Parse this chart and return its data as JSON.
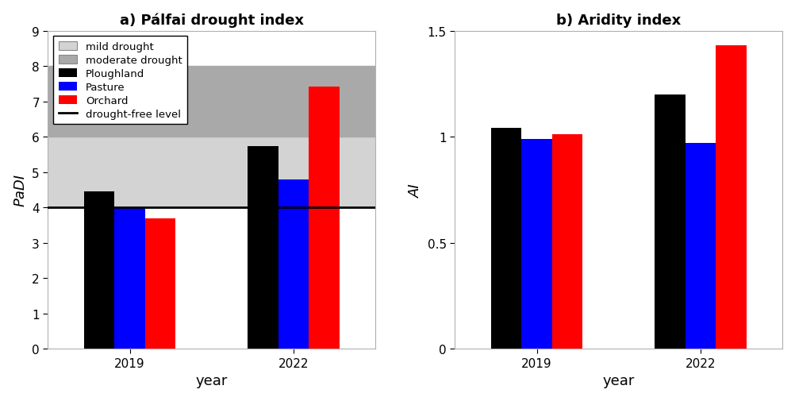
{
  "left_title": "a) Pálfai drought index",
  "right_title": "b) Aridity index",
  "years": [
    2019,
    2022
  ],
  "padi_ploughland": [
    4.45,
    5.73
  ],
  "padi_pasture": [
    4.0,
    4.78
  ],
  "padi_orchard": [
    3.68,
    7.42
  ],
  "ai_ploughland": [
    1.04,
    1.2
  ],
  "ai_pasture": [
    0.99,
    0.97
  ],
  "ai_orchard": [
    1.01,
    1.43
  ],
  "bar_colors": [
    "black",
    "blue",
    "red"
  ],
  "padi_ylim": [
    0,
    9
  ],
  "padi_yticks": [
    0,
    1,
    2,
    3,
    4,
    5,
    6,
    7,
    8,
    9
  ],
  "ai_ylim": [
    0,
    1.5
  ],
  "ai_yticks": [
    0,
    0.5,
    1.0,
    1.5
  ],
  "drought_free_level": 4.0,
  "mild_drought_range": [
    4.0,
    6.0
  ],
  "moderate_drought_range": [
    6.0,
    8.0
  ],
  "mild_drought_color": "#d3d3d3",
  "moderate_drought_color": "#a9a9a9",
  "xlabel": "year",
  "padi_ylabel": "PaDI",
  "ai_ylabel": "AI",
  "bar_width": 0.28,
  "group_centers": [
    1.0,
    2.5
  ],
  "xlim": [
    0.25,
    3.25
  ]
}
